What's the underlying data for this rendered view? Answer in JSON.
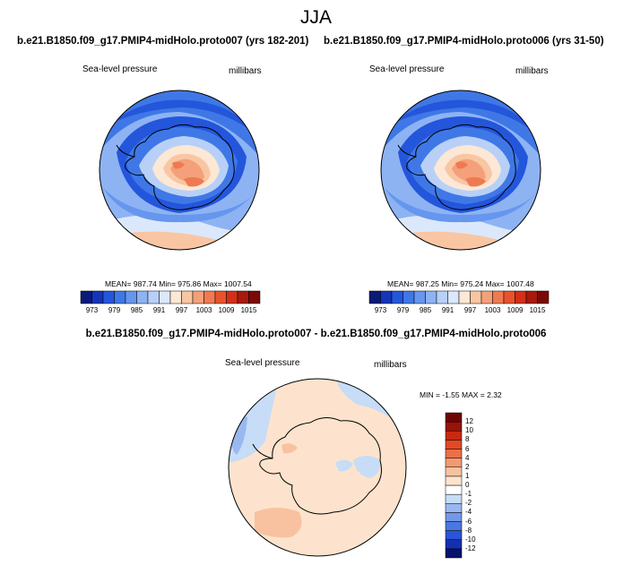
{
  "season": "JJA",
  "panels": {
    "left": {
      "title": "b.e21.B1850.f09_g17.PMIP4-midHolo.proto007 (yrs 182-201)",
      "variable": "Sea-level pressure",
      "units": "millibars",
      "stats": "MEAN= 987.74  Min= 975.86  Max= 1007.54"
    },
    "right": {
      "title": "b.e21.B1850.f09_g17.PMIP4-midHolo.proto006 (yrs 31-50)",
      "variable": "Sea-level pressure",
      "units": "millibars",
      "stats": "MEAN= 987.25  Min= 975.24  Max= 1007.48"
    },
    "diff": {
      "title": "b.e21.B1850.f09_g17.PMIP4-midHolo.proto007 - b.e21.B1850.f09_g17.PMIP4-midHolo.proto006",
      "variable": "Sea-level pressure",
      "units": "millibars",
      "stats": "MIN =  -1.55 MAX =   2.32"
    }
  },
  "chart_data": [
    {
      "type": "heatmap",
      "projection": "south-polar stereographic",
      "title": "b.e21.B1850.f09_g17.PMIP4-midHolo.proto007 (yrs 182-201)",
      "variable": "Sea-level pressure",
      "units": "millibars",
      "mean": 987.74,
      "min": 975.86,
      "max": 1007.54,
      "colorbar": {
        "colors": [
          "#0a1a78",
          "#1535b8",
          "#2456dc",
          "#3f78e6",
          "#6696ee",
          "#8db3f3",
          "#b8d0f7",
          "#dbe8fb",
          "#fde7d5",
          "#f8c6a3",
          "#f4a07a",
          "#ef7a52",
          "#e8532c",
          "#d23018",
          "#a81a0c",
          "#7a0a08"
        ],
        "ticks": [
          "973",
          "979",
          "985",
          "991",
          "997",
          "1003",
          "1009",
          "1015"
        ]
      }
    },
    {
      "type": "heatmap",
      "projection": "south-polar stereographic",
      "title": "b.e21.B1850.f09_g17.PMIP4-midHolo.proto006 (yrs 31-50)",
      "variable": "Sea-level pressure",
      "units": "millibars",
      "mean": 987.25,
      "min": 975.24,
      "max": 1007.48,
      "colorbar": {
        "colors": [
          "#0a1a78",
          "#1535b8",
          "#2456dc",
          "#3f78e6",
          "#6696ee",
          "#8db3f3",
          "#b8d0f7",
          "#dbe8fb",
          "#fde7d5",
          "#f8c6a3",
          "#f4a07a",
          "#ef7a52",
          "#e8532c",
          "#d23018",
          "#a81a0c",
          "#7a0a08"
        ],
        "ticks": [
          "973",
          "979",
          "985",
          "991",
          "997",
          "1003",
          "1009",
          "1015"
        ]
      }
    },
    {
      "type": "heatmap",
      "projection": "south-polar stereographic",
      "title": "b.e21.B1850.f09_g17.PMIP4-midHolo.proto007 - b.e21.B1850.f09_g17.PMIP4-midHolo.proto006",
      "variable": "Sea-level pressure",
      "units": "millibars",
      "min": -1.55,
      "max": 2.32,
      "colorbar": {
        "colors": [
          "#081070",
          "#1430b0",
          "#2a55d8",
          "#4a78e0",
          "#7298e8",
          "#9ab8f0",
          "#c6dcf7",
          "#ffffff",
          "#fde3cd",
          "#f8c2a0",
          "#f39a72",
          "#ec7048",
          "#e24a24",
          "#c72a12",
          "#9a1208",
          "#6e0606"
        ],
        "ticks": [
          "-12",
          "-10",
          "-8",
          "-6",
          "-4",
          "-2",
          "-1",
          "0",
          "1",
          "2",
          "4",
          "6",
          "8",
          "10",
          "12"
        ]
      }
    }
  ]
}
